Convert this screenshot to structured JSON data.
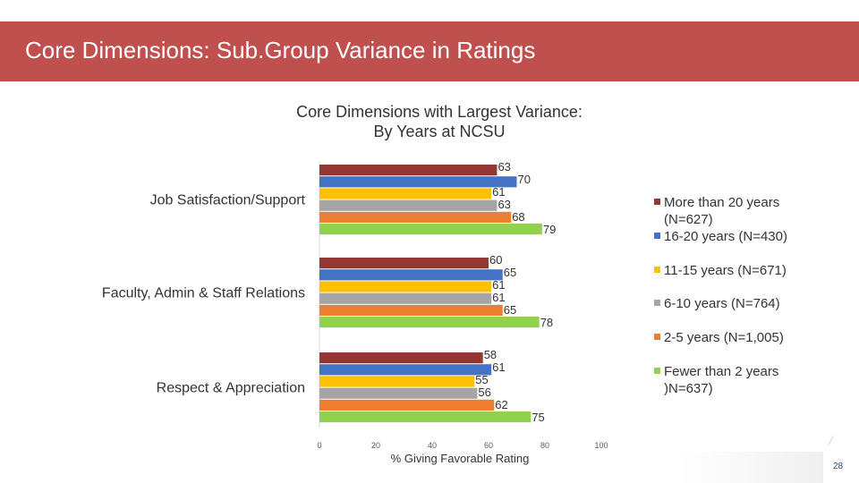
{
  "slide": {
    "title": "Core Dimensions: Sub.Group Variance in Ratings",
    "page_number": "28"
  },
  "chart_data": {
    "type": "bar",
    "orientation": "horizontal",
    "title_line1": "Core Dimensions with Largest Variance:",
    "title_line2": "By Years at NCSU",
    "categories": [
      "Job Satisfaction/Support",
      "Faculty, Admin & Staff Relations",
      "Respect & Appreciation"
    ],
    "series": [
      {
        "name": "More than 20 years (N=627)",
        "legend_lines": [
          "More than 20 years",
          "(N=627)"
        ],
        "color": "#943634",
        "values": [
          63,
          60,
          58
        ]
      },
      {
        "name": "16-20 years (N=430)",
        "legend_lines": [
          "16-20 years (N=430)"
        ],
        "color": "#4472c4",
        "values": [
          70,
          65,
          61
        ]
      },
      {
        "name": "11-15 years (N=671)",
        "legend_lines": [
          "11-15 years (N=671)"
        ],
        "color": "#ffc000",
        "values": [
          61,
          61,
          55
        ]
      },
      {
        "name": "6-10 years (N=764)",
        "legend_lines": [
          "6-10 years (N=764)"
        ],
        "color": "#a5a5a5",
        "values": [
          63,
          61,
          56
        ]
      },
      {
        "name": "2-5 years (N=1,005)",
        "legend_lines": [
          "2-5 years (N=1,005)"
        ],
        "color": "#ed7d31",
        "values": [
          68,
          65,
          62
        ]
      },
      {
        "name": "Fewer than 2 years )N=637)",
        "legend_lines": [
          "Fewer than 2 years",
          ")N=637)"
        ],
        "color": "#92d050",
        "values": [
          79,
          78,
          75
        ]
      }
    ],
    "xlabel": "% Giving Favorable Rating",
    "xlim": [
      0,
      100
    ],
    "xticks": [
      0,
      20,
      40,
      60,
      80,
      100
    ],
    "legend_position": "right",
    "grid": false
  }
}
